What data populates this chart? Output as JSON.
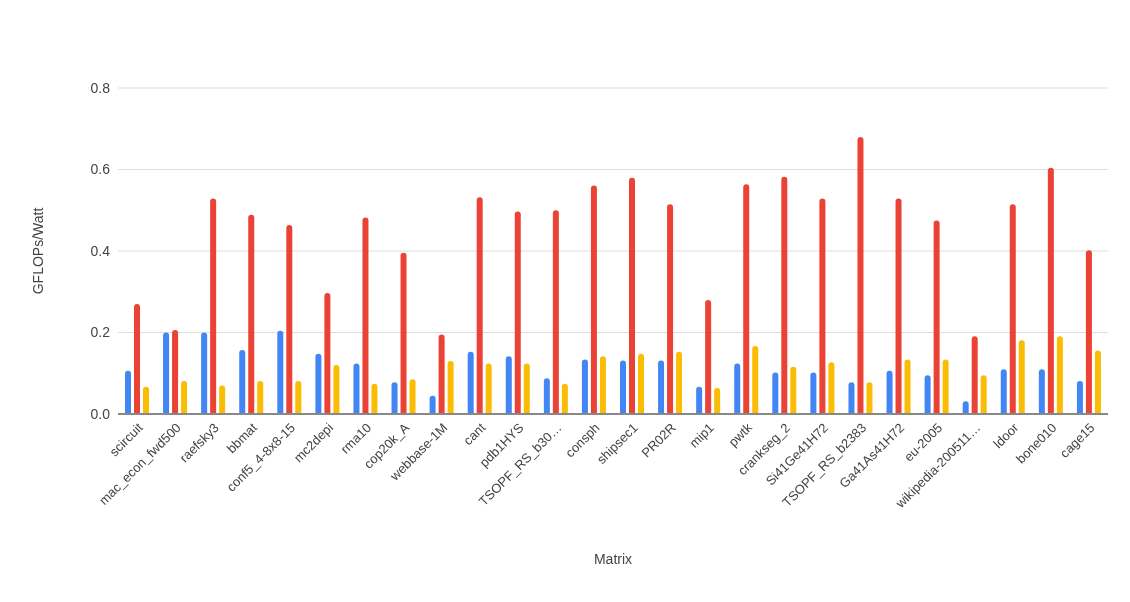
{
  "chart_data": {
    "type": "bar",
    "xlabel": "Matrix",
    "ylabel": "GFLOPs/Watt",
    "categories": [
      "scircuit",
      "mac_econ_fwd500",
      "raefsky3",
      "bbmat",
      "conf5_4-8x8-15",
      "mc2depi",
      "rma10",
      "cop20k_A",
      "webbase-1M",
      "cant",
      "pdb1HYS",
      "TSOPF_RS_b30…",
      "consph",
      "shipsec1",
      "PR02R",
      "mip1",
      "pwtk",
      "crankseg_2",
      "Si41Ge41H72",
      "TSOPF_RS_b2383",
      "Ga41As41H72",
      "eu-2005",
      "wikipedia-200511…",
      "ldoor",
      "bone010",
      "cage15"
    ],
    "series": [
      {
        "color": "#4285f4",
        "values": [
          0.106,
          0.2,
          0.2,
          0.157,
          0.204,
          0.148,
          0.124,
          0.078,
          0.045,
          0.153,
          0.142,
          0.088,
          0.134,
          0.131,
          0.131,
          0.067,
          0.124,
          0.102,
          0.102,
          0.078,
          0.106,
          0.095,
          0.031,
          0.11,
          0.11,
          0.081
        ]
      },
      {
        "color": "#ea4335",
        "values": [
          0.27,
          0.206,
          0.529,
          0.489,
          0.464,
          0.297,
          0.482,
          0.396,
          0.195,
          0.532,
          0.497,
          0.5,
          0.561,
          0.58,
          0.515,
          0.28,
          0.564,
          0.582,
          0.529,
          0.68,
          0.529,
          0.475,
          0.191,
          0.515,
          0.604,
          0.402
        ]
      },
      {
        "color": "#fbbc04",
        "values": [
          0.067,
          0.081,
          0.07,
          0.081,
          0.081,
          0.12,
          0.074,
          0.085,
          0.13,
          0.124,
          0.124,
          0.074,
          0.142,
          0.148,
          0.153,
          0.064,
          0.167,
          0.116,
          0.127,
          0.078,
          0.134,
          0.134,
          0.095,
          0.181,
          0.191,
          0.156
        ]
      }
    ],
    "ylim": [
      0,
      0.8
    ],
    "yticks": [
      {
        "value": 0,
        "label": "0.0"
      },
      {
        "value": 0.2,
        "label": "0.2"
      },
      {
        "value": 0.4,
        "label": "0.4"
      },
      {
        "value": 0.6,
        "label": "0.6"
      },
      {
        "value": 0.8,
        "label": "0.8"
      }
    ],
    "grid": "y"
  }
}
